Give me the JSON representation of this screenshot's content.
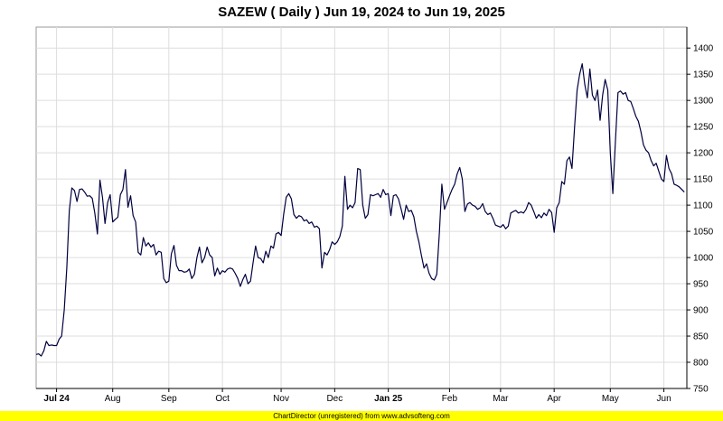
{
  "chart_data": {
    "type": "line",
    "title": "SAZEW ( Daily ) Jun 19, 2024 to Jun 19, 2025",
    "xlabel": "",
    "ylabel": "",
    "ylim": [
      750,
      1440
    ],
    "y_ticks": [
      750,
      800,
      850,
      900,
      950,
      1000,
      1050,
      1100,
      1150,
      1200,
      1250,
      1300,
      1350,
      1400
    ],
    "x_range": [
      0,
      255
    ],
    "x_ticks": [
      {
        "label": "Jul 24",
        "x": 8,
        "bold": true
      },
      {
        "label": "Aug",
        "x": 30,
        "bold": false
      },
      {
        "label": "Sep",
        "x": 52,
        "bold": false
      },
      {
        "label": "Oct",
        "x": 73,
        "bold": false
      },
      {
        "label": "Nov",
        "x": 96,
        "bold": false
      },
      {
        "label": "Dec",
        "x": 117,
        "bold": false
      },
      {
        "label": "Jan 25",
        "x": 138,
        "bold": true
      },
      {
        "label": "Feb",
        "x": 162,
        "bold": false
      },
      {
        "label": "Mar",
        "x": 182,
        "bold": false
      },
      {
        "label": "Apr",
        "x": 203,
        "bold": false
      },
      {
        "label": "May",
        "x": 225,
        "bold": false
      },
      {
        "label": "Jun",
        "x": 246,
        "bold": false
      }
    ],
    "grid": true,
    "series": [
      {
        "name": "",
        "color": "#000040",
        "points": [
          [
            0,
            815
          ],
          [
            1,
            816
          ],
          [
            2,
            812
          ],
          [
            3,
            822
          ],
          [
            4,
            840
          ],
          [
            5,
            832
          ],
          [
            6,
            833
          ],
          [
            7,
            832
          ],
          [
            8,
            832
          ],
          [
            9,
            844
          ],
          [
            10,
            850
          ],
          [
            11,
            900
          ],
          [
            12,
            980
          ],
          [
            13,
            1090
          ],
          [
            14,
            1133
          ],
          [
            15,
            1128
          ],
          [
            16,
            1107
          ],
          [
            17,
            1130
          ],
          [
            18,
            1131
          ],
          [
            19,
            1125
          ],
          [
            20,
            1117
          ],
          [
            21,
            1118
          ],
          [
            22,
            1113
          ],
          [
            23,
            1085
          ],
          [
            24,
            1045
          ],
          [
            25,
            1148
          ],
          [
            26,
            1115
          ],
          [
            27,
            1065
          ],
          [
            28,
            1105
          ],
          [
            29,
            1120
          ],
          [
            30,
            1068
          ],
          [
            31,
            1073
          ],
          [
            32,
            1077
          ],
          [
            33,
            1120
          ],
          [
            34,
            1130
          ],
          [
            35,
            1168
          ],
          [
            36,
            1096
          ],
          [
            37,
            1118
          ],
          [
            38,
            1080
          ],
          [
            39,
            1068
          ],
          [
            40,
            1010
          ],
          [
            41,
            1005
          ],
          [
            42,
            1038
          ],
          [
            43,
            1022
          ],
          [
            44,
            1028
          ],
          [
            45,
            1020
          ],
          [
            46,
            1025
          ],
          [
            47,
            1005
          ],
          [
            48,
            1012
          ],
          [
            49,
            1010
          ],
          [
            50,
            960
          ],
          [
            51,
            952
          ],
          [
            52,
            955
          ],
          [
            53,
            1007
          ],
          [
            54,
            1023
          ],
          [
            55,
            985
          ],
          [
            56,
            975
          ],
          [
            57,
            975
          ],
          [
            58,
            972
          ],
          [
            59,
            973
          ],
          [
            60,
            978
          ],
          [
            61,
            960
          ],
          [
            62,
            968
          ],
          [
            63,
            1000
          ],
          [
            64,
            1020
          ],
          [
            65,
            990
          ],
          [
            66,
            1000
          ],
          [
            67,
            1020
          ],
          [
            68,
            1005
          ],
          [
            69,
            1000
          ],
          [
            70,
            965
          ],
          [
            71,
            980
          ],
          [
            72,
            968
          ],
          [
            73,
            975
          ],
          [
            74,
            972
          ],
          [
            75,
            978
          ],
          [
            76,
            980
          ],
          [
            77,
            978
          ],
          [
            78,
            970
          ],
          [
            79,
            960
          ],
          [
            80,
            945
          ],
          [
            81,
            958
          ],
          [
            82,
            968
          ],
          [
            83,
            950
          ],
          [
            84,
            955
          ],
          [
            85,
            990
          ],
          [
            86,
            1022
          ],
          [
            87,
            1000
          ],
          [
            88,
            998
          ],
          [
            89,
            990
          ],
          [
            90,
            1012
          ],
          [
            91,
            1000
          ],
          [
            92,
            1022
          ],
          [
            93,
            1018
          ],
          [
            94,
            1045
          ],
          [
            95,
            1048
          ],
          [
            96,
            1042
          ],
          [
            97,
            1083
          ],
          [
            98,
            1115
          ],
          [
            99,
            1122
          ],
          [
            100,
            1112
          ],
          [
            101,
            1082
          ],
          [
            102,
            1075
          ],
          [
            103,
            1080
          ],
          [
            104,
            1078
          ],
          [
            105,
            1070
          ],
          [
            106,
            1072
          ],
          [
            107,
            1065
          ],
          [
            108,
            1068
          ],
          [
            109,
            1058
          ],
          [
            110,
            1060
          ],
          [
            111,
            1055
          ],
          [
            112,
            980
          ],
          [
            113,
            1010
          ],
          [
            114,
            1005
          ],
          [
            115,
            1015
          ],
          [
            116,
            1030
          ],
          [
            117,
            1025
          ],
          [
            118,
            1030
          ],
          [
            119,
            1040
          ],
          [
            120,
            1060
          ],
          [
            121,
            1155
          ],
          [
            122,
            1092
          ],
          [
            123,
            1100
          ],
          [
            124,
            1095
          ],
          [
            125,
            1105
          ],
          [
            126,
            1170
          ],
          [
            127,
            1168
          ],
          [
            128,
            1100
          ],
          [
            129,
            1075
          ],
          [
            130,
            1082
          ],
          [
            131,
            1120
          ],
          [
            132,
            1118
          ],
          [
            133,
            1120
          ],
          [
            134,
            1122
          ],
          [
            135,
            1115
          ],
          [
            136,
            1130
          ],
          [
            137,
            1120
          ],
          [
            138,
            1122
          ],
          [
            139,
            1080
          ],
          [
            140,
            1118
          ],
          [
            141,
            1120
          ],
          [
            142,
            1112
          ],
          [
            143,
            1093
          ],
          [
            144,
            1073
          ],
          [
            145,
            1100
          ],
          [
            146,
            1088
          ],
          [
            147,
            1090
          ],
          [
            148,
            1078
          ],
          [
            149,
            1050
          ],
          [
            150,
            1030
          ],
          [
            151,
            1003
          ],
          [
            152,
            980
          ],
          [
            153,
            988
          ],
          [
            154,
            970
          ],
          [
            155,
            960
          ],
          [
            156,
            957
          ],
          [
            157,
            968
          ],
          [
            158,
            1045
          ],
          [
            159,
            1140
          ],
          [
            160,
            1092
          ],
          [
            161,
            1105
          ],
          [
            162,
            1118
          ],
          [
            163,
            1130
          ],
          [
            164,
            1140
          ],
          [
            165,
            1160
          ],
          [
            166,
            1172
          ],
          [
            167,
            1150
          ],
          [
            168,
            1088
          ],
          [
            169,
            1102
          ],
          [
            170,
            1105
          ],
          [
            171,
            1100
          ],
          [
            172,
            1098
          ],
          [
            173,
            1092
          ],
          [
            174,
            1095
          ],
          [
            175,
            1103
          ],
          [
            176,
            1088
          ],
          [
            177,
            1082
          ],
          [
            178,
            1085
          ],
          [
            179,
            1075
          ],
          [
            180,
            1062
          ],
          [
            181,
            1060
          ],
          [
            182,
            1058
          ],
          [
            183,
            1063
          ],
          [
            184,
            1055
          ],
          [
            185,
            1060
          ],
          [
            186,
            1085
          ],
          [
            187,
            1088
          ],
          [
            188,
            1090
          ],
          [
            189,
            1085
          ],
          [
            190,
            1087
          ],
          [
            191,
            1085
          ],
          [
            192,
            1092
          ],
          [
            193,
            1105
          ],
          [
            194,
            1100
          ],
          [
            195,
            1088
          ],
          [
            196,
            1075
          ],
          [
            197,
            1082
          ],
          [
            198,
            1076
          ],
          [
            199,
            1085
          ],
          [
            200,
            1080
          ],
          [
            201,
            1092
          ],
          [
            202,
            1086
          ],
          [
            203,
            1048
          ],
          [
            204,
            1095
          ],
          [
            205,
            1105
          ],
          [
            206,
            1145
          ],
          [
            207,
            1140
          ],
          [
            208,
            1185
          ],
          [
            209,
            1192
          ],
          [
            210,
            1170
          ],
          [
            211,
            1250
          ],
          [
            212,
            1320
          ],
          [
            213,
            1350
          ],
          [
            214,
            1370
          ],
          [
            215,
            1330
          ],
          [
            216,
            1305
          ],
          [
            217,
            1360
          ],
          [
            218,
            1310
          ],
          [
            219,
            1300
          ],
          [
            220,
            1320
          ],
          [
            221,
            1262
          ],
          [
            222,
            1310
          ],
          [
            223,
            1340
          ],
          [
            224,
            1320
          ],
          [
            225,
            1200
          ],
          [
            226,
            1122
          ],
          [
            227,
            1220
          ],
          [
            228,
            1315
          ],
          [
            229,
            1318
          ],
          [
            230,
            1312
          ],
          [
            231,
            1315
          ],
          [
            232,
            1300
          ],
          [
            233,
            1298
          ],
          [
            234,
            1285
          ],
          [
            235,
            1270
          ],
          [
            236,
            1260
          ],
          [
            237,
            1240
          ],
          [
            238,
            1215
          ],
          [
            239,
            1205
          ],
          [
            240,
            1200
          ],
          [
            241,
            1185
          ],
          [
            242,
            1175
          ],
          [
            243,
            1180
          ],
          [
            244,
            1165
          ],
          [
            245,
            1150
          ],
          [
            246,
            1145
          ],
          [
            247,
            1195
          ],
          [
            248,
            1170
          ],
          [
            249,
            1160
          ],
          [
            250,
            1140
          ],
          [
            251,
            1138
          ],
          [
            252,
            1135
          ],
          [
            253,
            1130
          ],
          [
            254,
            1125
          ]
        ]
      }
    ]
  },
  "footer": {
    "text": "ChartDirector (unregistered) from www.advsofteng.com",
    "background": "#ffff00"
  }
}
